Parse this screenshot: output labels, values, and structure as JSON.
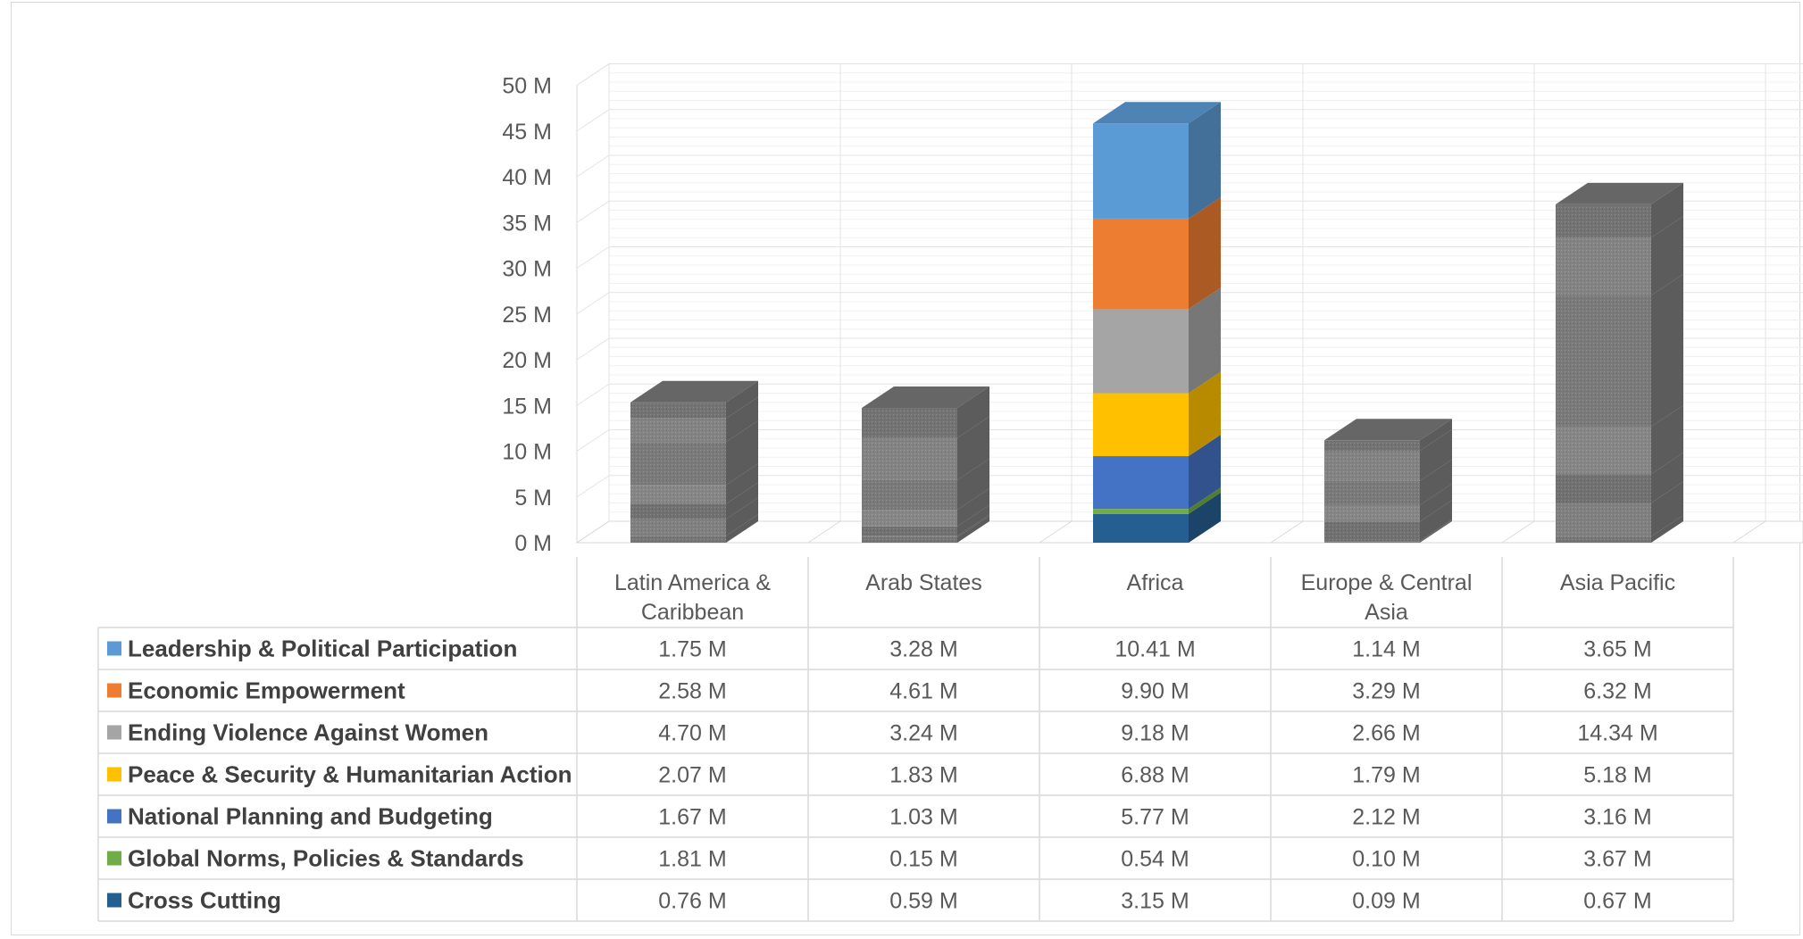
{
  "chart_data": {
    "type": "bar",
    "stacked": true,
    "three_d": true,
    "data_table": true,
    "categories": [
      [
        "Latin America &",
        "Caribbean"
      ],
      [
        "Arab States"
      ],
      [
        "Africa"
      ],
      [
        "Europe & Central",
        "Asia"
      ],
      [
        "Asia Pacific"
      ]
    ],
    "ylim": [
      0,
      50
    ],
    "ytick_values": [
      0,
      5,
      10,
      15,
      20,
      25,
      30,
      35,
      40,
      45,
      50
    ],
    "ytick_labels": [
      "0 M",
      "5 M",
      "10 M",
      "15 M",
      "20 M",
      "25 M",
      "30 M",
      "35 M",
      "40 M",
      "45 M",
      "50 M"
    ],
    "highlighted_category_index": 2,
    "dimmed_color": "#7f7f7f",
    "series": [
      {
        "name": "Leadership & Political Participation",
        "color": "#5b9bd5",
        "values": [
          1.75,
          3.28,
          10.41,
          1.14,
          3.65
        ],
        "labels": [
          "1.75 M",
          "3.28 M",
          "10.41 M",
          "1.14 M",
          "3.65 M"
        ]
      },
      {
        "name": "Economic Empowerment",
        "color": "#ed7d31",
        "values": [
          2.58,
          4.61,
          9.9,
          3.29,
          6.32
        ],
        "labels": [
          "2.58 M",
          "4.61 M",
          "9.90 M",
          "3.29 M",
          "6.32 M"
        ]
      },
      {
        "name": "Ending Violence Against Women",
        "color": "#a5a5a5",
        "values": [
          4.7,
          3.24,
          9.18,
          2.66,
          14.34
        ],
        "labels": [
          "4.70 M",
          "3.24 M",
          "9.18 M",
          "2.66 M",
          "14.34 M"
        ]
      },
      {
        "name": "Peace & Security & Humanitarian Action",
        "color": "#ffc000",
        "values": [
          2.07,
          1.83,
          6.88,
          1.79,
          5.18
        ],
        "labels": [
          "2.07 M",
          "1.83 M",
          "6.88 M",
          "1.79 M",
          "5.18 M"
        ]
      },
      {
        "name": "National Planning and Budgeting",
        "color": "#4472c4",
        "values": [
          1.67,
          1.03,
          5.77,
          2.12,
          3.16
        ],
        "labels": [
          "1.67 M",
          "1.03 M",
          "5.77 M",
          "2.12 M",
          "3.16 M"
        ]
      },
      {
        "name": "Global Norms, Policies & Standards",
        "color": "#70ad47",
        "values": [
          1.81,
          0.15,
          0.54,
          0.1,
          3.67
        ],
        "labels": [
          "1.81 M",
          "0.15 M",
          "0.54 M",
          "0.10 M",
          "3.67 M"
        ]
      },
      {
        "name": "Cross Cutting",
        "color": "#255e91",
        "values": [
          0.76,
          0.59,
          3.15,
          0.09,
          0.67
        ],
        "labels": [
          "0.76 M",
          "0.59 M",
          "3.15 M",
          "0.09 M",
          "0.67 M"
        ]
      }
    ]
  }
}
